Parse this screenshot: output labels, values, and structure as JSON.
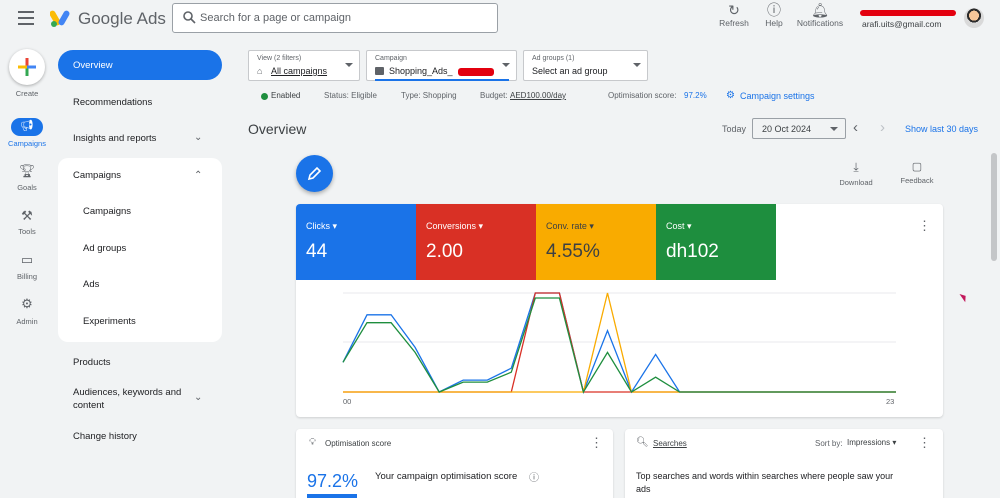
{
  "header": {
    "brand": "Google Ads",
    "search_placeholder": "Search for a page or campaign",
    "actions": [
      {
        "label": "Refresh",
        "icon": "refresh-icon"
      },
      {
        "label": "Help",
        "icon": "help-icon"
      },
      {
        "label": "Notifications",
        "icon": "bell-icon"
      }
    ],
    "account_email": "arafi.uits@gmail.com"
  },
  "rail": {
    "create": "Create",
    "items": [
      {
        "label": "Campaigns",
        "icon": "megaphone-icon",
        "active": true
      },
      {
        "label": "Goals",
        "icon": "trophy-icon"
      },
      {
        "label": "Tools",
        "icon": "tools-icon"
      },
      {
        "label": "Billing",
        "icon": "card-icon"
      },
      {
        "label": "Admin",
        "icon": "gear-icon"
      }
    ]
  },
  "nav": {
    "overview": "Overview",
    "recommendations": "Recommendations",
    "insights": "Insights and reports",
    "campaigns": "Campaigns",
    "sub": [
      "Campaigns",
      "Ad groups",
      "Ads",
      "Experiments"
    ],
    "products": "Products",
    "audiences_line1": "Audiences, keywords and",
    "audiences_line2": "content",
    "change_history": "Change history"
  },
  "filters": {
    "view_label": "View (2 filters)",
    "view_value": "All campaigns",
    "campaign_label": "Campaign",
    "campaign_value": "Shopping_Ads_",
    "adgroups_label": "Ad groups (1)",
    "adgroups_value": "Select an ad group"
  },
  "status": {
    "enabled": "Enabled",
    "status": "Status: Eligible",
    "type": "Type: Shopping",
    "budget_label": "Budget:",
    "budget_value": "AED100.00/day",
    "opt_label": "Optimisation score:",
    "opt_value": "97.2%",
    "settings": "Campaign settings"
  },
  "overview": {
    "title": "Overview",
    "today": "Today",
    "date": "20 Oct 2024",
    "show_last": "Show last 30 days",
    "download": "Download",
    "feedback": "Feedback"
  },
  "metrics": [
    {
      "label": "Clicks",
      "value": "44",
      "color": "#1a73e8"
    },
    {
      "label": "Conversions",
      "value": "2.00",
      "color": "#d93025"
    },
    {
      "label": "Conv. rate",
      "value": "4.55%",
      "color": "#f9ab00"
    },
    {
      "label": "Cost",
      "value": "dh102",
      "color": "#1e8e3e"
    }
  ],
  "chart_data": {
    "type": "line",
    "x_start_label": "00",
    "x_end_label": "23",
    "x": [
      0,
      1,
      2,
      3,
      4,
      5,
      6,
      7,
      8,
      9,
      10,
      11,
      12,
      13,
      14,
      15,
      16,
      17,
      18,
      19,
      20,
      21,
      22,
      23
    ],
    "series": [
      {
        "color": "#1a73e8",
        "values": [
          0.3,
          0.78,
          0.78,
          0.45,
          0,
          0.12,
          0.12,
          0.24,
          1.0,
          1.0,
          0,
          0.62,
          0,
          0.38,
          0,
          0,
          0,
          0,
          0,
          0,
          0,
          0,
          0,
          0
        ]
      },
      {
        "color": "#d93025",
        "values": [
          0,
          0,
          0,
          0,
          0,
          0,
          0,
          0,
          1.0,
          1.0,
          0,
          0,
          0,
          0,
          0,
          0,
          0,
          0,
          0,
          0,
          0,
          0,
          0,
          0
        ]
      },
      {
        "color": "#f9ab00",
        "values": [
          0,
          0,
          0,
          0,
          0,
          0,
          0,
          0,
          0,
          0,
          0,
          1.0,
          0,
          0,
          0,
          0,
          0,
          0,
          0,
          0,
          0,
          0,
          0,
          0
        ]
      },
      {
        "color": "#1e8e3e",
        "values": [
          0.3,
          0.7,
          0.7,
          0.4,
          0,
          0.1,
          0.1,
          0.2,
          0.95,
          0.95,
          0,
          0.4,
          0,
          0.15,
          0,
          0,
          0,
          0,
          0,
          0,
          0,
          0,
          0,
          0
        ]
      }
    ]
  },
  "opt_card": {
    "title": "Optimisation score",
    "value": "97.2%",
    "text": "Your campaign optimisation score"
  },
  "search_card": {
    "title": "Searches",
    "sort_label": "Sort by:",
    "sort_value": "Impressions",
    "text_line1": "Top searches and words within searches where people saw your",
    "text_line2": "ads"
  }
}
